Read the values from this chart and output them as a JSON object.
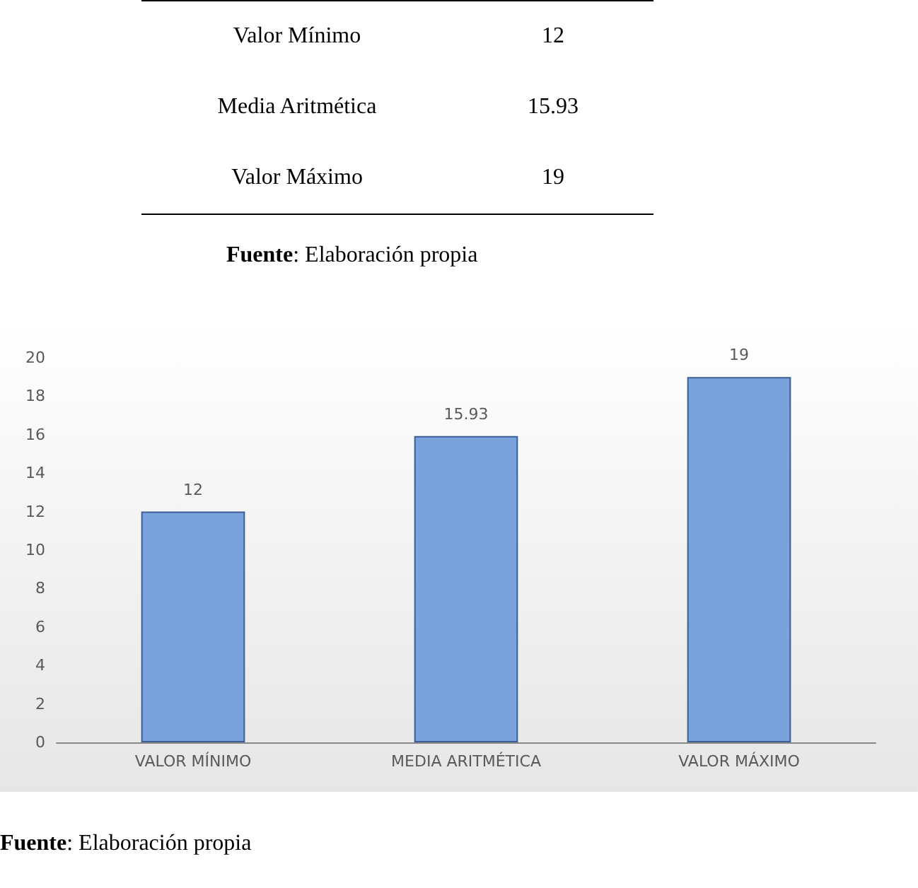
{
  "chart_data": {
    "type": "bar",
    "categories": [
      "VALOR MÍNIMO",
      "MEDIA ARITMÉTICA",
      "VALOR MÁXIMO"
    ],
    "values": [
      12,
      15.93,
      19
    ],
    "color": "#7aa3de",
    "ylim": [
      0,
      20
    ],
    "yticks": [
      0,
      2,
      4,
      6,
      8,
      10,
      12,
      14,
      16,
      18,
      20
    ],
    "grid": false,
    "data_labels": true,
    "annotations": [
      "Valor Mínimo",
      "12",
      "Media Aritmética",
      "15.93",
      "Valor Máximo",
      "19",
      "Fuente: Elaboración propia",
      "Fuente: Elaboración propia"
    ]
  }
}
